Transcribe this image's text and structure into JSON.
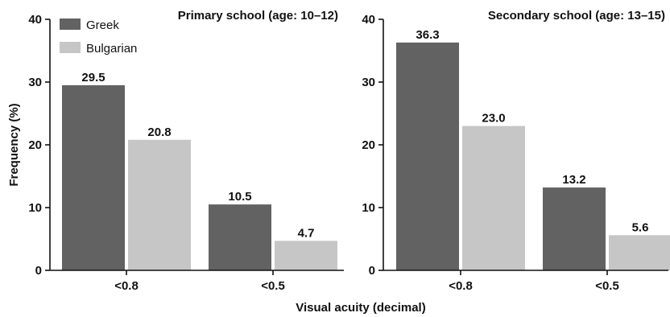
{
  "colors": {
    "greek": "#626262",
    "bulgarian": "#c6c6c6"
  },
  "legend": [
    {
      "name": "Greek",
      "color": "#626262"
    },
    {
      "name": "Bulgarian",
      "color": "#c6c6c6"
    }
  ],
  "ylabel": "Frequency (%)",
  "xlabel": "Visual acuity (decimal)",
  "chart_data": [
    {
      "type": "bar",
      "title": "Primary school (age: 10–12)",
      "categories": [
        "<0.8",
        "<0.5"
      ],
      "series": [
        {
          "name": "Greek",
          "values": [
            29.5,
            10.5
          ],
          "labels": [
            "29.5",
            "10.5"
          ]
        },
        {
          "name": "Bulgarian",
          "values": [
            20.8,
            4.7
          ],
          "labels": [
            "20.8",
            "4.7"
          ]
        }
      ],
      "ylim": [
        0,
        40
      ],
      "yticks": [
        0,
        10,
        20,
        30,
        40
      ],
      "legend": "top-left"
    },
    {
      "type": "bar",
      "title": "Secondary school (age: 13–15)",
      "categories": [
        "<0.8",
        "<0.5"
      ],
      "series": [
        {
          "name": "Greek",
          "values": [
            36.3,
            13.2
          ],
          "labels": [
            "36.3",
            "13.2"
          ]
        },
        {
          "name": "Bulgarian",
          "values": [
            23.0,
            5.6
          ],
          "labels": [
            "23.0",
            "5.6"
          ]
        }
      ],
      "ylim": [
        0,
        40
      ],
      "yticks": [
        0,
        10,
        20,
        30,
        40
      ]
    }
  ]
}
